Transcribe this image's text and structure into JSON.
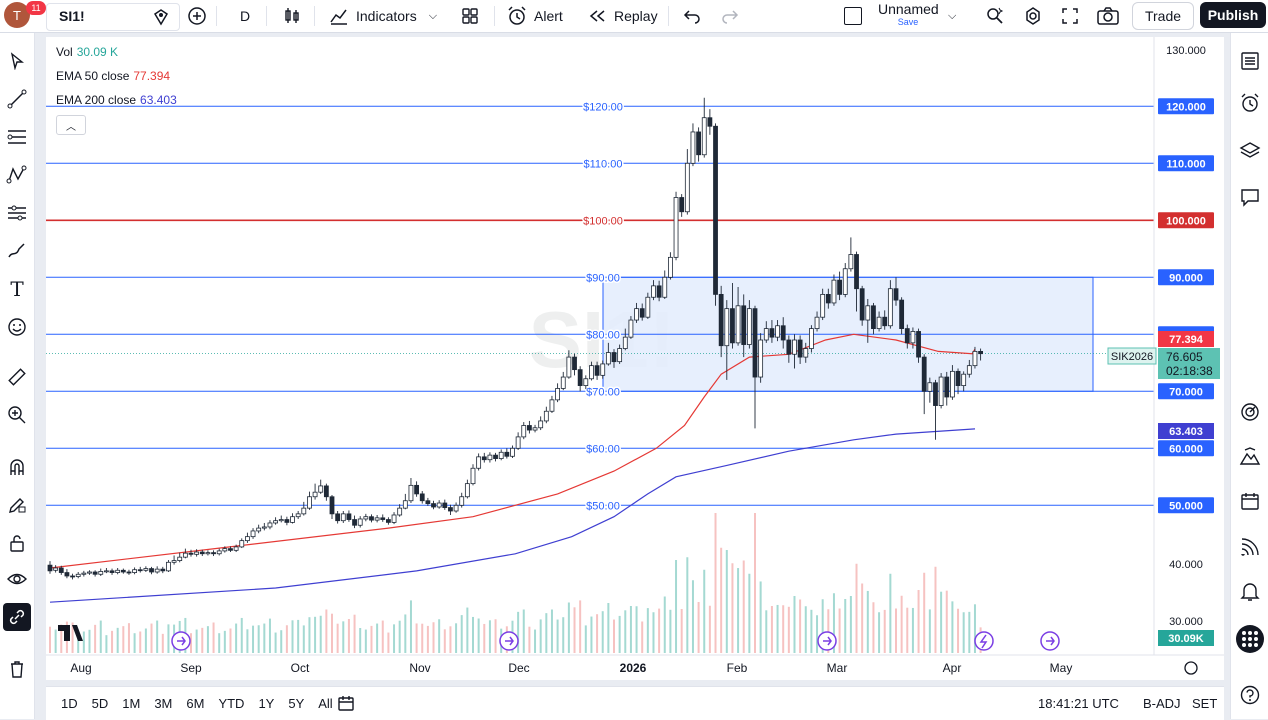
{
  "toolbar": {
    "avatar_letter": "T",
    "avatar_badge": "11",
    "symbol": "SI1!",
    "interval": "D",
    "indicators_label": "Indicators",
    "alert_label": "Alert",
    "replay_label": "Replay",
    "layout_name": "Unnamed",
    "layout_save": "Save",
    "trade_label": "Trade",
    "publish_label": "Publish"
  },
  "legend": {
    "vol_label": "Vol",
    "vol_value": "30.09 K",
    "ema50_label": "EMA 50 close",
    "ema50_value": "77.394",
    "ema200_label": "EMA 200 close",
    "ema200_value": "63.403"
  },
  "colors": {
    "up": "#26a69a",
    "down": "#ef5350",
    "ema50": "#e53935",
    "ema200": "#3f3fd1",
    "hline": "#2962ff",
    "hline_red": "#d32f2f",
    "box_fill": "#e3ecfd",
    "price_tag": "#5dc2b3"
  },
  "timeframes": [
    "1D",
    "5D",
    "1M",
    "3M",
    "6M",
    "YTD",
    "1Y",
    "5Y",
    "All"
  ],
  "status": {
    "clock": "18:41:21 UTC",
    "adj": "B-ADJ",
    "session": "SET"
  },
  "chart_data": {
    "type": "candlestick",
    "watermark": "SI1!",
    "y_range": [
      25,
      130
    ],
    "y_ticks": [
      "130.000",
      "40.000",
      "30.000"
    ],
    "x_ticks": [
      "Aug",
      "Sep",
      "Oct",
      "Nov",
      "Dec",
      "2026",
      "Feb",
      "Mar",
      "Apr",
      "May"
    ],
    "horizontal_levels": [
      {
        "value": 120,
        "label": "$120.00",
        "axis_label": "120.000",
        "color": "#2962ff"
      },
      {
        "value": 110,
        "label": "$110.00",
        "axis_label": "110.000",
        "color": "#2962ff"
      },
      {
        "value": 100,
        "label": "$100.00",
        "axis_label": "100.000",
        "color": "#d32f2f"
      },
      {
        "value": 90,
        "label": "$90.00",
        "axis_label": "90.000",
        "color": "#2962ff"
      },
      {
        "value": 80,
        "label": "$80.00",
        "axis_label": "80.000",
        "color": "#2962ff"
      },
      {
        "value": 70,
        "label": "$70.00",
        "axis_label": "70.000",
        "color": "#2962ff"
      },
      {
        "value": 60,
        "label": "$60.00",
        "axis_label": "60.000",
        "color": "#2962ff"
      },
      {
        "value": 50,
        "label": "$50.00",
        "axis_label": "50.000",
        "color": "#2962ff"
      }
    ],
    "rectangle": {
      "price_top": 90,
      "price_bottom": 70,
      "time_start": "2025-12-23",
      "time_end": "2026-05-01"
    },
    "last_price": "76.605",
    "countdown": "02:18:38",
    "contract_label": "SIK2026",
    "ema50_tag": "77.394",
    "ema200_tag": "63.403",
    "volume_tag": "30.09K",
    "ema50_points": [
      [
        0,
        39
      ],
      [
        60,
        42.5
      ],
      [
        120,
        46
      ],
      [
        150,
        48
      ],
      [
        180,
        52
      ],
      [
        200,
        56
      ],
      [
        215,
        60
      ],
      [
        225,
        64
      ],
      [
        232,
        69
      ],
      [
        238,
        73
      ],
      [
        248,
        76
      ],
      [
        262,
        76.5
      ],
      [
        275,
        79
      ],
      [
        285,
        80
      ],
      [
        300,
        79
      ],
      [
        315,
        77
      ],
      [
        327,
        76.6
      ],
      [
        328,
        77.4
      ]
    ],
    "ema200_points": [
      [
        0,
        33
      ],
      [
        80,
        35.5
      ],
      [
        130,
        38.5
      ],
      [
        165,
        41.5
      ],
      [
        185,
        44.5
      ],
      [
        200,
        48
      ],
      [
        212,
        52
      ],
      [
        222,
        55
      ],
      [
        240,
        57
      ],
      [
        262,
        59.5
      ],
      [
        285,
        61.5
      ],
      [
        300,
        62.5
      ],
      [
        328,
        63.4
      ]
    ],
    "candles": [
      [
        0,
        39.5,
        38.5,
        40.2,
        38.0
      ],
      [
        2,
        38.6,
        39.0,
        39.5,
        38.2
      ],
      [
        4,
        39.0,
        38.2,
        39.4,
        37.8
      ],
      [
        6,
        38.2,
        37.6,
        38.8,
        37.2
      ],
      [
        8,
        37.6,
        37.5,
        38.0,
        37.0
      ],
      [
        10,
        37.5,
        37.9,
        38.3,
        37.2
      ],
      [
        12,
        37.9,
        38.1,
        38.5,
        37.5
      ],
      [
        14,
        38.1,
        38.3,
        38.6,
        37.8
      ],
      [
        16,
        38.3,
        37.9,
        38.6,
        37.5
      ],
      [
        18,
        37.9,
        38.4,
        38.9,
        37.6
      ],
      [
        20,
        38.4,
        38.5,
        39.0,
        38.1
      ],
      [
        22,
        38.5,
        38.2,
        38.9,
        37.8
      ],
      [
        24,
        38.2,
        38.6,
        39.0,
        37.9
      ],
      [
        26,
        38.6,
        38.3,
        38.9,
        38.0
      ],
      [
        28,
        38.3,
        38.2,
        38.7,
        37.8
      ],
      [
        30,
        38.2,
        38.7,
        39.1,
        37.9
      ],
      [
        32,
        38.7,
        38.6,
        39.2,
        38.2
      ],
      [
        34,
        38.6,
        38.9,
        39.3,
        38.3
      ],
      [
        36,
        38.9,
        38.3,
        39.2,
        37.9
      ],
      [
        38,
        38.3,
        38.8,
        39.3,
        38.0
      ],
      [
        40,
        38.8,
        38.5,
        39.2,
        38.1
      ],
      [
        42,
        38.5,
        40.0,
        40.4,
        38.3
      ],
      [
        44,
        40.0,
        40.3,
        41.2,
        39.6
      ],
      [
        46,
        40.3,
        40.9,
        41.7,
        40.0
      ],
      [
        48,
        40.9,
        41.6,
        42.4,
        40.7
      ],
      [
        50,
        41.6,
        41.4,
        42.2,
        41.0
      ],
      [
        52,
        41.4,
        41.8,
        42.3,
        41.0
      ],
      [
        54,
        41.8,
        41.5,
        42.2,
        41.1
      ],
      [
        56,
        41.5,
        41.7,
        42.1,
        41.2
      ],
      [
        58,
        41.7,
        41.5,
        42.1,
        41.1
      ],
      [
        60,
        41.5,
        42.0,
        42.4,
        41.2
      ],
      [
        62,
        42.0,
        42.4,
        42.8,
        41.7
      ],
      [
        64,
        42.4,
        42.1,
        42.8,
        41.8
      ],
      [
        66,
        42.1,
        42.7,
        43.1,
        41.8
      ],
      [
        68,
        42.7,
        43.8,
        44.2,
        42.5
      ],
      [
        70,
        43.8,
        44.5,
        45.2,
        43.4
      ],
      [
        72,
        44.5,
        45.5,
        46.0,
        44.1
      ],
      [
        74,
        45.5,
        46.0,
        46.6,
        45.1
      ],
      [
        76,
        46.0,
        46.2,
        46.9,
        45.6
      ],
      [
        78,
        46.2,
        46.9,
        47.4,
        45.8
      ],
      [
        80,
        46.9,
        47.3,
        47.9,
        46.6
      ],
      [
        82,
        47.3,
        47.5,
        48.2,
        47.0
      ],
      [
        84,
        47.5,
        47.0,
        48.0,
        46.5
      ],
      [
        86,
        47.0,
        48.0,
        48.6,
        46.8
      ],
      [
        88,
        48.0,
        48.5,
        49.0,
        47.6
      ],
      [
        90,
        48.5,
        49.5,
        50.6,
        48.2
      ],
      [
        92,
        49.5,
        51.5,
        52.4,
        49.2
      ],
      [
        94,
        51.5,
        52.3,
        53.8,
        51.0
      ],
      [
        96,
        52.3,
        53.4,
        54.5,
        52.0
      ],
      [
        98,
        53.4,
        51.5,
        53.8,
        50.8
      ],
      [
        100,
        51.5,
        48.5,
        51.8,
        47.6
      ],
      [
        102,
        48.5,
        47.3,
        49.0,
        46.8
      ],
      [
        104,
        47.3,
        48.5,
        49.0,
        46.9
      ],
      [
        106,
        48.5,
        47.5,
        49.1,
        47.1
      ],
      [
        108,
        47.5,
        46.5,
        48.2,
        46.0
      ],
      [
        110,
        46.5,
        47.6,
        48.1,
        46.1
      ],
      [
        112,
        47.6,
        48.0,
        48.5,
        47.2
      ],
      [
        114,
        48.0,
        47.4,
        48.4,
        47.0
      ],
      [
        116,
        47.4,
        47.8,
        48.3,
        47.0
      ],
      [
        118,
        47.8,
        47.5,
        48.4,
        47.1
      ],
      [
        120,
        47.5,
        47.0,
        47.9,
        46.6
      ],
      [
        122,
        47.0,
        48.3,
        48.8,
        46.7
      ],
      [
        124,
        48.3,
        49.5,
        50.2,
        48.0
      ],
      [
        126,
        49.5,
        50.8,
        52.0,
        49.3
      ],
      [
        128,
        50.8,
        53.5,
        54.8,
        50.4
      ],
      [
        130,
        53.5,
        52.0,
        54.2,
        51.5
      ],
      [
        132,
        52.0,
        50.8,
        52.5,
        50.3
      ],
      [
        134,
        50.8,
        50.3,
        51.3,
        49.9
      ],
      [
        136,
        50.3,
        49.7,
        50.8,
        49.3
      ],
      [
        138,
        49.7,
        50.4,
        50.9,
        49.4
      ],
      [
        140,
        50.4,
        49.6,
        51.0,
        49.2
      ],
      [
        142,
        49.6,
        49.0,
        50.1,
        48.3
      ],
      [
        144,
        49.0,
        50.0,
        50.5,
        48.7
      ],
      [
        146,
        50.0,
        51.5,
        52.2,
        49.6
      ],
      [
        148,
        51.5,
        53.8,
        54.5,
        51.2
      ],
      [
        150,
        53.8,
        56.5,
        57.2,
        53.5
      ],
      [
        152,
        56.5,
        58.5,
        59.1,
        56.1
      ],
      [
        154,
        58.5,
        58.0,
        59.2,
        57.5
      ],
      [
        156,
        58.0,
        58.8,
        59.3,
        57.5
      ],
      [
        158,
        58.8,
        58.2,
        59.2,
        57.7
      ],
      [
        160,
        58.2,
        59.3,
        59.8,
        57.9
      ],
      [
        162,
        59.3,
        58.6,
        60.0,
        58.2
      ],
      [
        164,
        58.6,
        60.0,
        60.5,
        58.3
      ],
      [
        166,
        60.0,
        62.0,
        62.8,
        59.7
      ],
      [
        168,
        62.0,
        64.0,
        64.6,
        61.6
      ],
      [
        170,
        64.0,
        63.2,
        64.8,
        62.6
      ],
      [
        172,
        63.2,
        63.6,
        64.1,
        62.8
      ],
      [
        174,
        63.6,
        64.8,
        65.6,
        63.2
      ],
      [
        176,
        64.8,
        66.5,
        67.3,
        64.4
      ],
      [
        178,
        66.5,
        68.5,
        69.2,
        66.2
      ],
      [
        180,
        68.5,
        70.5,
        71.4,
        68.1
      ],
      [
        182,
        70.5,
        72.5,
        73.4,
        70.2
      ],
      [
        184,
        72.5,
        76.0,
        77.2,
        72.2
      ],
      [
        186,
        76.0,
        73.8,
        76.6,
        72.8
      ],
      [
        188,
        73.8,
        71.0,
        74.4,
        70.0
      ],
      [
        190,
        71.0,
        72.2,
        72.8,
        70.4
      ],
      [
        192,
        72.2,
        74.5,
        75.2,
        71.9
      ],
      [
        194,
        74.5,
        72.8,
        75.2,
        72.0
      ],
      [
        196,
        72.8,
        74.8,
        75.4,
        72.2
      ],
      [
        198,
        74.8,
        76.8,
        78.5,
        74.5
      ],
      [
        200,
        76.8,
        75.2,
        77.4,
        74.1
      ],
      [
        202,
        75.2,
        77.5,
        78.2,
        74.8
      ],
      [
        204,
        77.5,
        79.5,
        81.0,
        77.2
      ],
      [
        206,
        79.5,
        82.5,
        83.2,
        79.2
      ],
      [
        208,
        82.5,
        84.5,
        85.5,
        82.0
      ],
      [
        210,
        84.5,
        83.0,
        85.4,
        82.4
      ],
      [
        212,
        83.0,
        86.5,
        87.3,
        82.7
      ],
      [
        214,
        86.5,
        88.5,
        89.5,
        86.0
      ],
      [
        216,
        88.5,
        86.5,
        89.4,
        85.8
      ],
      [
        218,
        86.5,
        90.0,
        91.2,
        86.2
      ],
      [
        220,
        90.0,
        93.5,
        94.4,
        89.6
      ],
      [
        222,
        93.5,
        104.0,
        105.0,
        93.0
      ],
      [
        224,
        104.0,
        101.5,
        104.6,
        100.6
      ],
      [
        226,
        101.5,
        110.0,
        112.5,
        101.0
      ],
      [
        228,
        110.0,
        115.5,
        117.0,
        109.5
      ],
      [
        230,
        115.5,
        111.5,
        116.3,
        110.3
      ],
      [
        232,
        111.5,
        118.0,
        121.5,
        111.0
      ],
      [
        234,
        118.0,
        116.5,
        119.5,
        115.0
      ],
      [
        236,
        116.5,
        87.0,
        117.0,
        85.0
      ],
      [
        238,
        87.0,
        78.0,
        88.5,
        76.0
      ],
      [
        240,
        78.0,
        84.5,
        86.0,
        72.0
      ],
      [
        242,
        84.5,
        78.5,
        89.0,
        77.5
      ],
      [
        244,
        78.5,
        85.0,
        88.3,
        78.0
      ],
      [
        246,
        85.0,
        78.2,
        87.0,
        76.0
      ],
      [
        248,
        78.2,
        84.5,
        86.0,
        77.5
      ],
      [
        250,
        84.5,
        72.5,
        85.0,
        63.5
      ],
      [
        252,
        72.5,
        79.0,
        80.2,
        71.5
      ],
      [
        254,
        79.0,
        81.0,
        82.3,
        78.5
      ],
      [
        256,
        81.0,
        79.5,
        82.5,
        78.5
      ],
      [
        258,
        79.5,
        81.5,
        82.5,
        78.8
      ],
      [
        260,
        81.5,
        79.0,
        83.0,
        77.5
      ],
      [
        262,
        79.0,
        76.5,
        79.8,
        75.0
      ],
      [
        264,
        76.5,
        79.0,
        80.0,
        74.0
      ],
      [
        266,
        79.0,
        76.0,
        79.8,
        74.8
      ],
      [
        268,
        76.0,
        77.5,
        78.5,
        75.0
      ],
      [
        270,
        77.5,
        81.0,
        81.6,
        76.8
      ],
      [
        272,
        81.0,
        83.0,
        84.0,
        80.5
      ],
      [
        274,
        83.0,
        87.0,
        88.0,
        82.5
      ],
      [
        276,
        87.0,
        85.5,
        88.0,
        84.5
      ],
      [
        278,
        85.5,
        89.5,
        90.5,
        85.0
      ],
      [
        280,
        89.5,
        87.0,
        91.0,
        86.0
      ],
      [
        282,
        87.0,
        91.5,
        92.5,
        86.5
      ],
      [
        284,
        91.5,
        94.0,
        97.0,
        91.0
      ],
      [
        286,
        94.0,
        88.0,
        94.5,
        84.0
      ],
      [
        288,
        88.0,
        82.5,
        88.5,
        81.5
      ],
      [
        290,
        82.5,
        85.0,
        86.2,
        78.5
      ],
      [
        292,
        85.0,
        81.0,
        85.5,
        80.0
      ],
      [
        294,
        81.0,
        83.0,
        84.0,
        80.5
      ],
      [
        296,
        83.0,
        81.5,
        84.2,
        80.8
      ],
      [
        298,
        81.5,
        88.0,
        89.5,
        81.0
      ],
      [
        300,
        88.0,
        86.0,
        90.0,
        85.0
      ],
      [
        302,
        86.0,
        81.0,
        86.5,
        80.0
      ],
      [
        304,
        81.0,
        78.5,
        81.7,
        77.5
      ],
      [
        306,
        78.5,
        80.5,
        81.2,
        77.5
      ],
      [
        308,
        80.5,
        76.0,
        81.0,
        75.0
      ],
      [
        310,
        76.0,
        70.0,
        76.5,
        66.0
      ],
      [
        312,
        70.0,
        71.5,
        72.4,
        68.0
      ],
      [
        314,
        71.5,
        67.5,
        72.0,
        61.5
      ],
      [
        316,
        67.5,
        72.5,
        73.2,
        67.0
      ],
      [
        318,
        72.5,
        69.0,
        73.4,
        67.5
      ],
      [
        320,
        69.0,
        73.5,
        74.6,
        68.5
      ],
      [
        322,
        73.5,
        71.0,
        74.0,
        69.5
      ],
      [
        324,
        71.0,
        73.0,
        73.5,
        70.0
      ],
      [
        326,
        73.0,
        74.5,
        75.5,
        72.4
      ],
      [
        328,
        74.5,
        77.0,
        77.8,
        74.0
      ],
      [
        330,
        77.0,
        76.6,
        77.5,
        75.4
      ]
    ]
  }
}
